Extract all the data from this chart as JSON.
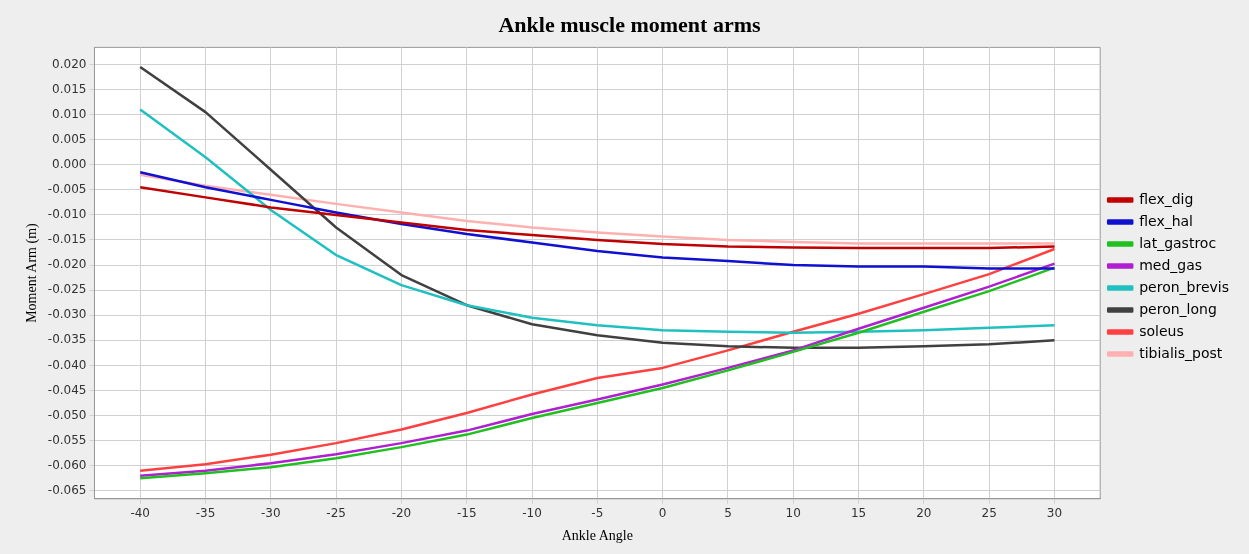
{
  "chart_data": {
    "type": "line",
    "title": "Ankle muscle moment arms",
    "xlabel": "Ankle Angle",
    "ylabel": "Moment Arm (m)",
    "x": [
      -40,
      -35,
      -30,
      -25,
      -20,
      -15,
      -10,
      -5,
      0,
      5,
      10,
      15,
      20,
      25,
      30
    ],
    "xlim": [
      -43.5,
      33.5
    ],
    "xticks": [
      -40,
      -35,
      -30,
      -25,
      -20,
      -15,
      -10,
      -5,
      0,
      5,
      10,
      15,
      20,
      25,
      30
    ],
    "ylim": [
      -0.0666,
      0.0234
    ],
    "yticks": [
      {
        "value": 0.02,
        "label": "0.020"
      },
      {
        "value": 0.015,
        "label": "0.015"
      },
      {
        "value": 0.01,
        "label": "0.010"
      },
      {
        "value": 0.005,
        "label": "0.005"
      },
      {
        "value": 0,
        "label": "0.000"
      },
      {
        "value": -0.005,
        "label": "-0.005"
      },
      {
        "value": -0.01,
        "label": "-0.010"
      },
      {
        "value": -0.015,
        "label": "-0.015"
      },
      {
        "value": -0.02,
        "label": "-0.020"
      },
      {
        "value": -0.025,
        "label": "-0.025"
      },
      {
        "value": -0.03,
        "label": "-0.030"
      },
      {
        "value": -0.035,
        "label": "-0.035"
      },
      {
        "value": -0.04,
        "label": "-0.040"
      },
      {
        "value": -0.045,
        "label": "-0.045"
      },
      {
        "value": -0.05,
        "label": "-0.050"
      },
      {
        "value": -0.055,
        "label": "-0.055"
      },
      {
        "value": -0.06,
        "label": "-0.060"
      },
      {
        "value": -0.065,
        "label": "-0.065"
      }
    ],
    "grid": true,
    "legend": "right",
    "marker": "none",
    "line_style": "solid",
    "series": [
      {
        "name": "flex_dig",
        "color": "#c00000",
        "values": [
          -0.0045,
          -0.0065,
          -0.0085,
          -0.01,
          -0.0115,
          -0.013,
          -0.014,
          -0.015,
          -0.0158,
          -0.0163,
          -0.0165,
          -0.0166,
          -0.0166,
          -0.0166,
          -0.0163
        ]
      },
      {
        "name": "flex_hal",
        "color": "#1010d0",
        "values": [
          -0.0015,
          -0.0045,
          -0.007,
          -0.0095,
          -0.0118,
          -0.0138,
          -0.0155,
          -0.0172,
          -0.0185,
          -0.0192,
          -0.02,
          -0.0203,
          -0.0203,
          -0.0207,
          -0.0207
        ]
      },
      {
        "name": "lat_gastroc",
        "color": "#20c020",
        "values": [
          -0.0625,
          -0.0615,
          -0.0603,
          -0.0585,
          -0.0563,
          -0.0538,
          -0.0505,
          -0.0475,
          -0.0445,
          -0.041,
          -0.0373,
          -0.0335,
          -0.0293,
          -0.0252,
          -0.0205
        ]
      },
      {
        "name": "med_gas",
        "color": "#b020d0",
        "values": [
          -0.062,
          -0.061,
          -0.0595,
          -0.0577,
          -0.0555,
          -0.053,
          -0.0497,
          -0.0468,
          -0.0438,
          -0.0405,
          -0.037,
          -0.0327,
          -0.0285,
          -0.0243,
          -0.0197
        ]
      },
      {
        "name": "peron_brevis",
        "color": "#20c0c0",
        "values": [
          0.011,
          0.0015,
          -0.009,
          -0.018,
          -0.024,
          -0.028,
          -0.0305,
          -0.032,
          -0.033,
          -0.0333,
          -0.0335,
          -0.0333,
          -0.033,
          -0.0325,
          -0.032
        ]
      },
      {
        "name": "peron_long",
        "color": "#404040",
        "values": [
          0.0195,
          0.0105,
          -0.001,
          -0.0125,
          -0.022,
          -0.028,
          -0.0318,
          -0.034,
          -0.0355,
          -0.0362,
          -0.0365,
          -0.0365,
          -0.0362,
          -0.0358,
          -0.035
        ]
      },
      {
        "name": "soleus",
        "color": "#ff4040",
        "values": [
          -0.061,
          -0.0597,
          -0.0578,
          -0.0555,
          -0.0528,
          -0.0495,
          -0.0458,
          -0.0425,
          -0.0405,
          -0.037,
          -0.0333,
          -0.0297,
          -0.0258,
          -0.0218,
          -0.0168
        ]
      },
      {
        "name": "tibialis_post",
        "color": "#ffb0b0",
        "values": [
          -0.002,
          -0.0042,
          -0.006,
          -0.0078,
          -0.0095,
          -0.0112,
          -0.0125,
          -0.0135,
          -0.0143,
          -0.015,
          -0.0154,
          -0.0157,
          -0.0157,
          -0.0157,
          -0.0157
        ]
      }
    ]
  }
}
